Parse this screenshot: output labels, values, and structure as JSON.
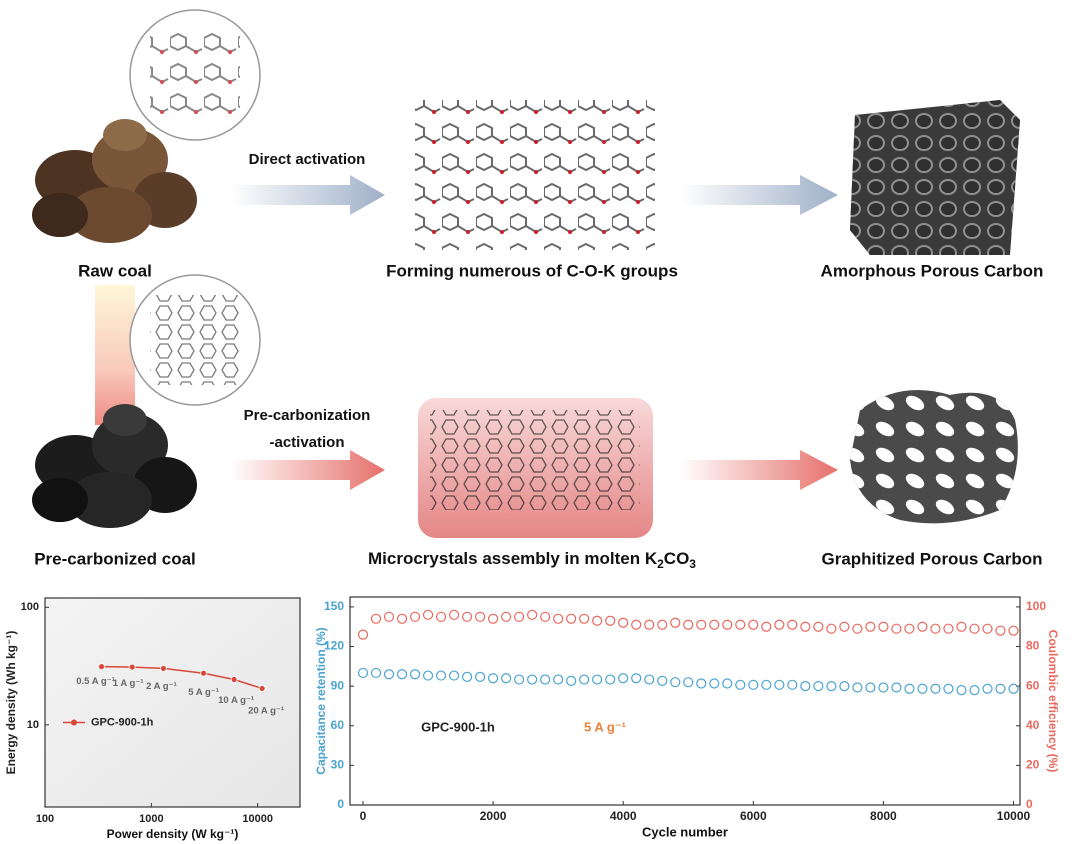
{
  "diagram": {
    "raw_coal": "Raw coal",
    "direct_activation": "Direct activation",
    "coK_groups": "Forming numerous of C-O-K groups",
    "amorphous": "Amorphous Porous Carbon",
    "precarb_activation": [
      "Pre-carbonization",
      "-activation"
    ],
    "precarb_coal": "Pre-carbonized coal",
    "microcrystals": [
      {
        "text": "Microcrystals assembly in molten K",
        "sub": false
      },
      {
        "text": "2",
        "sub": true
      },
      {
        "text": "CO",
        "sub": false
      },
      {
        "text": "3",
        "sub": true
      }
    ],
    "graphitized": "Graphitized Porous Carbon"
  },
  "chart_data": [
    {
      "type": "line",
      "xlabel": "Power density (W kg⁻¹)",
      "ylabel": "Energy density (Wh kg⁻¹)",
      "x": [
        340,
        660,
        1300,
        3100,
        6000,
        11000
      ],
      "series": [
        {
          "name": "GPC-900-1h",
          "color": "#d9463a",
          "values": [
            31.3,
            31,
            30.2,
            27.5,
            24.3,
            20.4
          ],
          "point_labels": [
            "0.5 A g⁻¹",
            "1 A g⁻¹",
            "2 A g⁻¹",
            "5 A g⁻¹",
            "10 A g⁻¹",
            "20 A g⁻¹"
          ]
        }
      ],
      "xlim": [
        100,
        25000
      ],
      "ylim": [
        2,
        120
      ],
      "xticks": [
        100,
        1000,
        10000
      ],
      "yticks": [
        10,
        100
      ],
      "xscale": "log",
      "yscale": "log",
      "legend": "center left"
    },
    {
      "type": "scatter",
      "xlabel": "Cycle number",
      "ylabel": "Capacitance retention (%)",
      "y2label": "Coulombic efficiency (%)",
      "x": [
        0,
        200,
        400,
        600,
        800,
        1000,
        1200,
        1400,
        1600,
        1800,
        2000,
        2200,
        2400,
        2600,
        2800,
        3000,
        3200,
        3400,
        3600,
        3800,
        4000,
        4200,
        4400,
        4600,
        4800,
        5000,
        5200,
        5400,
        5600,
        5800,
        6000,
        6200,
        6400,
        6600,
        6800,
        7000,
        7200,
        7400,
        7600,
        7800,
        8000,
        8200,
        8400,
        8600,
        8800,
        9000,
        9200,
        9400,
        9600,
        9800,
        10000
      ],
      "series": [
        {
          "color": "#4aa3d0",
          "values": [
            100,
            100,
            99,
            99,
            99,
            98,
            98,
            98,
            97,
            97,
            96,
            96,
            95,
            95,
            95,
            95,
            94,
            95,
            95,
            95,
            96,
            96,
            95,
            94,
            93,
            93,
            92,
            92,
            92,
            91,
            91,
            91,
            91,
            91,
            90,
            90,
            90,
            90,
            89,
            89,
            89,
            89,
            88,
            88,
            88,
            88,
            87,
            87,
            88,
            88,
            88
          ]
        },
        {
          "color": "#e8685e",
          "axis": "y2",
          "values": [
            86,
            94,
            95,
            94,
            95,
            96,
            95,
            96,
            95,
            95,
            94,
            95,
            95,
            96,
            95,
            94,
            94,
            94,
            93,
            93,
            92,
            91,
            91,
            91,
            92,
            91,
            91,
            91,
            91,
            91,
            91,
            90,
            91,
            91,
            90,
            90,
            89,
            90,
            89,
            90,
            90,
            89,
            89,
            90,
            89,
            89,
            90,
            89,
            89,
            88,
            88
          ]
        }
      ],
      "annotations": [
        {
          "text": "GPC-900-1h",
          "color": "#222222"
        },
        {
          "text": "5 A g⁻¹",
          "color": "#e8823a"
        }
      ],
      "xlim": [
        -200,
        10100
      ],
      "ylim": [
        0,
        157.5
      ],
      "y2lim": [
        0,
        105
      ],
      "xticks": [
        0,
        2000,
        4000,
        6000,
        8000,
        10000
      ],
      "yticks": [
        0,
        30,
        60,
        90,
        120,
        150
      ],
      "y2ticks": [
        0,
        20,
        40,
        60,
        80,
        100
      ]
    }
  ]
}
